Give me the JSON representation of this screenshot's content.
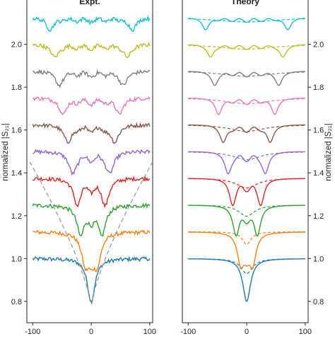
{
  "chart_data": {
    "type": "line",
    "ylabel": "normalized |S₂₁|",
    "ylim": [
      0.75,
      2.22
    ],
    "xlim": [
      -110,
      105
    ],
    "y_ticks": [
      0.8,
      1.0,
      1.2,
      1.4,
      1.6,
      1.8,
      2.0
    ],
    "x_ticks": [
      -100,
      0,
      100
    ],
    "grid": false,
    "colors": [
      "#1f77b4",
      "#ff7f0e",
      "#2ca02c",
      "#d62728",
      "#9467bd",
      "#8c564b",
      "#e377c2",
      "#7f7f7f",
      "#bcbd22",
      "#17becf"
    ],
    "traces": [
      {
        "offset": 0.0,
        "split": 0,
        "depth": 0.2
      },
      {
        "offset": 0.125,
        "split": 10,
        "depth": 0.17
      },
      {
        "offset": 0.25,
        "split": 18,
        "depth": 0.15
      },
      {
        "offset": 0.375,
        "split": 24,
        "depth": 0.13
      },
      {
        "offset": 0.5,
        "split": 32,
        "depth": 0.11
      },
      {
        "offset": 0.625,
        "split": 40,
        "depth": 0.09
      },
      {
        "offset": 0.75,
        "split": 48,
        "depth": 0.08
      },
      {
        "offset": 0.875,
        "split": 55,
        "depth": 0.07
      },
      {
        "offset": 1.0,
        "split": 62,
        "depth": 0.065
      },
      {
        "offset": 1.125,
        "split": 70,
        "depth": 0.06
      }
    ],
    "panels": [
      {
        "title": "Expt.",
        "kind": "experiment",
        "yaxis": "left"
      },
      {
        "title": "Theory",
        "kind": "theory",
        "yaxis": "right"
      }
    ]
  }
}
